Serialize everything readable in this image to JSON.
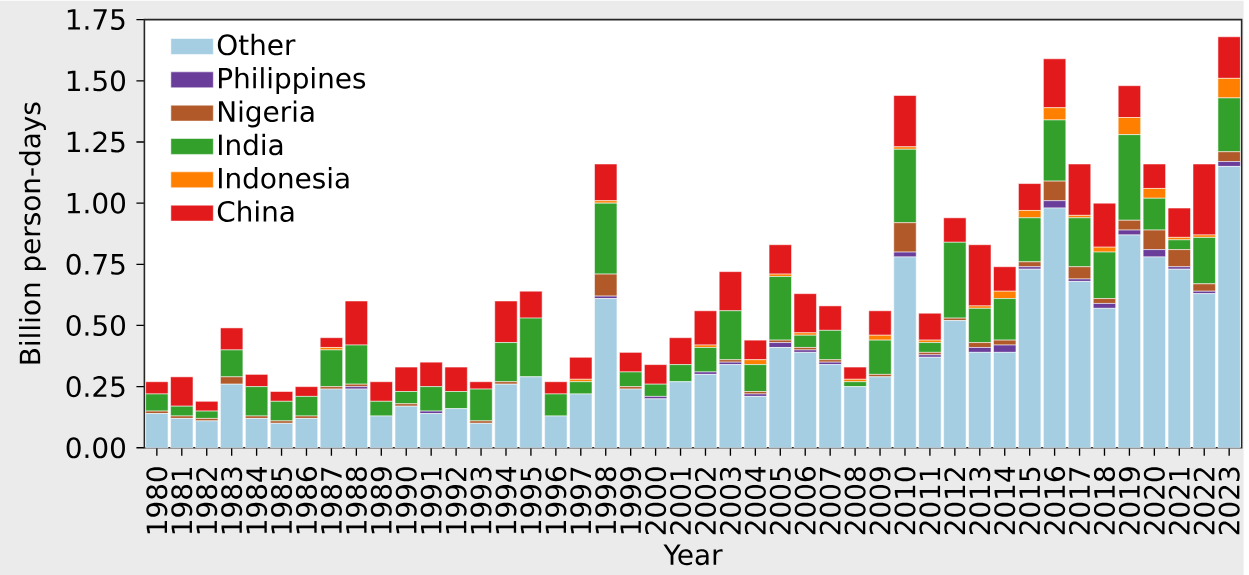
{
  "chart_data": {
    "type": "bar",
    "stacked": true,
    "xlabel": "Year",
    "ylabel": "Billion person-days",
    "categories": [
      "1980",
      "1981",
      "1982",
      "1983",
      "1984",
      "1985",
      "1986",
      "1987",
      "1988",
      "1989",
      "1990",
      "1991",
      "1992",
      "1993",
      "1994",
      "1995",
      "1996",
      "1997",
      "1998",
      "1999",
      "2000",
      "2001",
      "2002",
      "2003",
      "2004",
      "2005",
      "2006",
      "2007",
      "2008",
      "2009",
      "2010",
      "2011",
      "2012",
      "2013",
      "2014",
      "2015",
      "2016",
      "2017",
      "2018",
      "2019",
      "2020",
      "2021",
      "2022",
      "2023"
    ],
    "ylim": [
      0,
      1.75
    ],
    "yticks": [
      {
        "value": 0,
        "label": "0.00"
      },
      {
        "value": 0.25,
        "label": "0.25"
      },
      {
        "value": 0.5,
        "label": "0.50"
      },
      {
        "value": 0.75,
        "label": "0.75"
      },
      {
        "value": 1,
        "label": "1.00"
      },
      {
        "value": 1.25,
        "label": "1.25"
      },
      {
        "value": 1.5,
        "label": "1.50"
      },
      {
        "value": 1.75,
        "label": "1.75"
      }
    ],
    "legend": "top left",
    "series": [
      {
        "name": "Other",
        "color": "#a6cee3",
        "values": [
          0.14,
          0.12,
          0.11,
          0.26,
          0.12,
          0.1,
          0.12,
          0.24,
          0.24,
          0.13,
          0.17,
          0.14,
          0.16,
          0.1,
          0.26,
          0.29,
          0.13,
          0.22,
          0.61,
          0.24,
          0.2,
          0.27,
          0.3,
          0.34,
          0.21,
          0.41,
          0.39,
          0.34,
          0.25,
          0.29,
          0.78,
          0.37,
          0.52,
          0.39,
          0.39,
          0.73,
          0.98,
          0.68,
          0.57,
          0.87,
          0.78,
          0.73,
          0.63,
          1.15
        ]
      },
      {
        "name": "Philippines",
        "color": "#6a3d9a",
        "values": [
          0,
          0,
          0,
          0,
          0,
          0,
          0,
          0,
          0.01,
          0,
          0,
          0.01,
          0,
          0,
          0,
          0,
          0,
          0,
          0.01,
          0,
          0.01,
          0,
          0.01,
          0.01,
          0.01,
          0.02,
          0.01,
          0.01,
          0,
          0,
          0.02,
          0.01,
          0,
          0.02,
          0.03,
          0.01,
          0.03,
          0.01,
          0.02,
          0.02,
          0.03,
          0.01,
          0.01,
          0.02
        ]
      },
      {
        "name": "Nigeria",
        "color": "#b15928",
        "values": [
          0.01,
          0.01,
          0.01,
          0.03,
          0.01,
          0.01,
          0.01,
          0.01,
          0.01,
          0,
          0.01,
          0,
          0,
          0.01,
          0.01,
          0,
          0,
          0,
          0.09,
          0.01,
          0,
          0,
          0,
          0.01,
          0.01,
          0.01,
          0.01,
          0.01,
          0,
          0.01,
          0.12,
          0.01,
          0.01,
          0.02,
          0.02,
          0.02,
          0.08,
          0.05,
          0.02,
          0.04,
          0.08,
          0.07,
          0.03,
          0.04
        ]
      },
      {
        "name": "India",
        "color": "#33a02c",
        "values": [
          0.07,
          0.04,
          0.03,
          0.11,
          0.12,
          0.08,
          0.08,
          0.15,
          0.16,
          0.06,
          0.05,
          0.1,
          0.07,
          0.13,
          0.16,
          0.24,
          0.09,
          0.05,
          0.29,
          0.06,
          0.05,
          0.07,
          0.1,
          0.2,
          0.11,
          0.26,
          0.05,
          0.12,
          0.02,
          0.14,
          0.3,
          0.04,
          0.31,
          0.14,
          0.17,
          0.18,
          0.25,
          0.2,
          0.19,
          0.35,
          0.13,
          0.04,
          0.19,
          0.22
        ]
      },
      {
        "name": "Indonesia",
        "color": "#ff7f00",
        "values": [
          0,
          0,
          0,
          0,
          0,
          0,
          0,
          0.01,
          0,
          0,
          0,
          0,
          0,
          0,
          0,
          0,
          0,
          0.01,
          0.01,
          0,
          0,
          0,
          0.01,
          0,
          0.02,
          0.01,
          0.01,
          0,
          0.01,
          0.02,
          0.01,
          0.01,
          0,
          0.01,
          0.03,
          0.03,
          0.05,
          0.01,
          0.02,
          0.07,
          0.04,
          0.01,
          0.01,
          0.08
        ]
      },
      {
        "name": "China",
        "color": "#e31a1c",
        "values": [
          0.05,
          0.12,
          0.04,
          0.09,
          0.05,
          0.04,
          0.04,
          0.04,
          0.18,
          0.08,
          0.1,
          0.1,
          0.1,
          0.03,
          0.17,
          0.11,
          0.05,
          0.09,
          0.15,
          0.08,
          0.08,
          0.11,
          0.14,
          0.16,
          0.08,
          0.12,
          0.16,
          0.1,
          0.05,
          0.1,
          0.21,
          0.11,
          0.1,
          0.25,
          0.1,
          0.11,
          0.2,
          0.21,
          0.18,
          0.13,
          0.1,
          0.12,
          0.29,
          0.17
        ]
      }
    ]
  }
}
